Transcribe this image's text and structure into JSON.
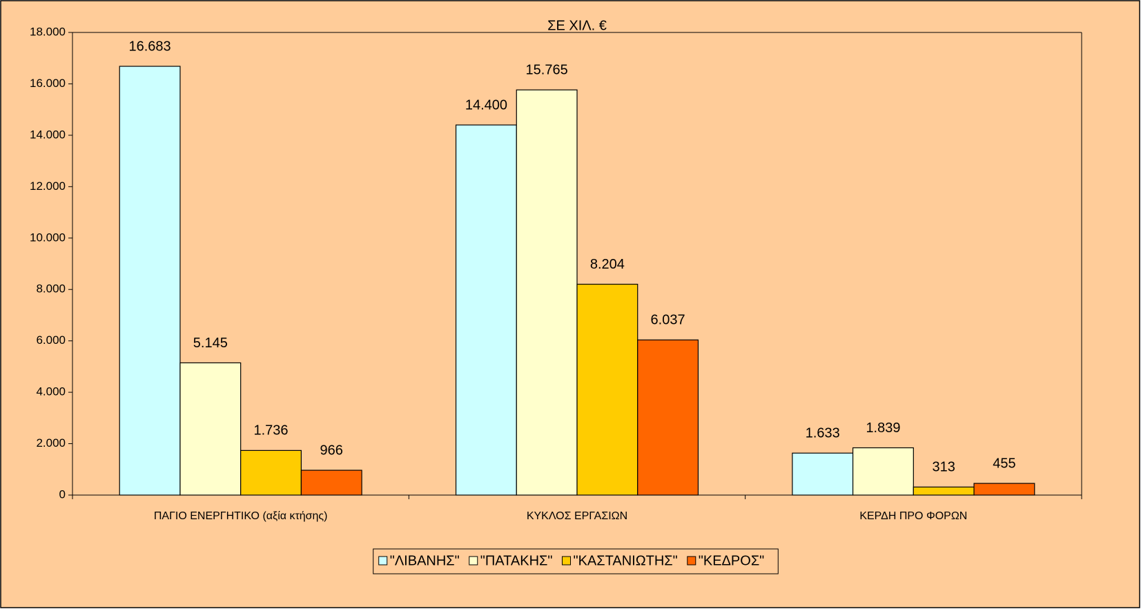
{
  "chart_data": {
    "type": "bar",
    "title": "ΣΕ ΧΙΛ. €",
    "categories": [
      "ΠΑΓΙΟ ΕΝΕΡΓΗΤΙΚΟ (αξία κτήσης)",
      "ΚΥΚΛΟΣ ΕΡΓΑΣΙΩΝ",
      "ΚΕΡΔΗ ΠΡΟ ΦΟΡΩΝ"
    ],
    "series": [
      {
        "name": "\"ΛΙΒΑΝΗΣ\"",
        "color": "#ccffff",
        "values": [
          16683,
          14400,
          1633
        ],
        "value_labels": [
          "16.683",
          "14.400",
          "1.633"
        ]
      },
      {
        "name": "\"ΠΑΤΑΚΗΣ\"",
        "color": "#ffffcc",
        "values": [
          5145,
          15765,
          1839
        ],
        "value_labels": [
          "5.145",
          "15.765",
          "1.839"
        ]
      },
      {
        "name": "\"ΚΑΣΤΑΝΙΩΤΗΣ\"",
        "color": "#ffcc00",
        "values": [
          1736,
          8204,
          313
        ],
        "value_labels": [
          "1.736",
          "8.204",
          "313"
        ]
      },
      {
        "name": "\"ΚΕΔΡΟΣ\"",
        "color": "#ff6600",
        "values": [
          966,
          6037,
          455
        ],
        "value_labels": [
          "966",
          "6.037",
          "455"
        ]
      }
    ],
    "ylim": [
      0,
      18000
    ],
    "yticks": [
      0,
      {
        "value": 2000,
        "label": "2.000"
      },
      {
        "value": 4000,
        "label": "4.000"
      },
      {
        "value": 6000,
        "label": "6.000"
      },
      {
        "value": 8000,
        "label": "8.000"
      },
      {
        "value": 10000,
        "label": "10.000"
      },
      {
        "value": 12000,
        "label": "12.000"
      },
      {
        "value": 14000,
        "label": "14.000"
      },
      {
        "value": 16000,
        "label": "16.000"
      },
      {
        "value": 18000,
        "label": "18.000"
      }
    ],
    "grid": false,
    "legend": "bottom"
  }
}
